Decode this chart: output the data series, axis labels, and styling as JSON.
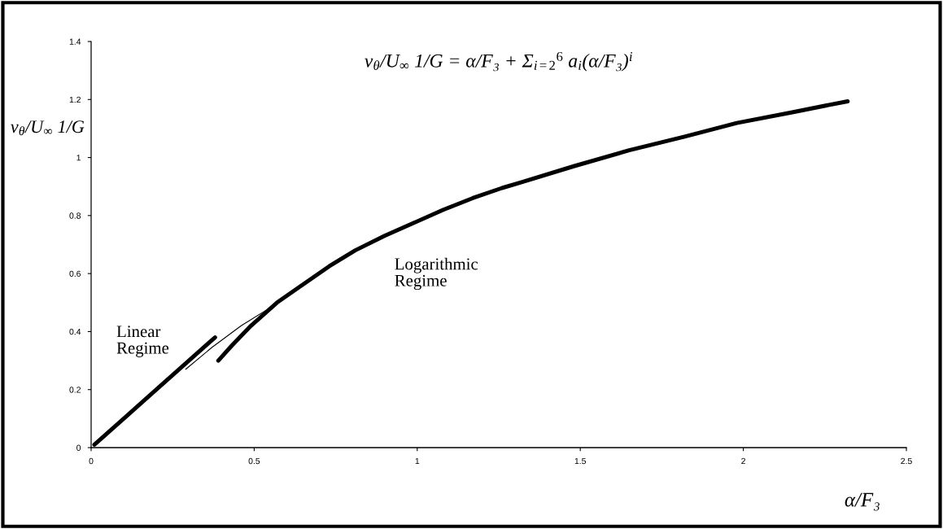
{
  "chart_data": {
    "type": "line",
    "title": "v$_{θ}$/U$_{∞}$ 1/G = α/F₃ + Σ$_{i=2}$$^{6}$ a$_{i}$(α/F₃)$^{i}$",
    "xlabel": "α/F₃",
    "ylabel": "v$_{θ}$/U$_{∞}$ 1/G",
    "xlim": [
      0,
      2.5
    ],
    "xticks": [
      0,
      0.5,
      1,
      1.5,
      2,
      2.5
    ],
    "ylim": [
      0,
      1.4
    ],
    "yticks": [
      0,
      0.2,
      0.4,
      0.6,
      0.8,
      1,
      1.2,
      1.4
    ],
    "series": [
      {
        "color": "#000000",
        "x": [
          0.01,
          0.2,
          0.38
        ],
        "values": [
          0.01,
          0.2,
          0.38
        ]
      },
      {
        "color": "#000000",
        "x": [
          0.39,
          0.43,
          0.49,
          0.57,
          0.64,
          0.73,
          0.81,
          0.9,
          0.99,
          1.08,
          1.17,
          1.26,
          1.32,
          1.48,
          1.65,
          1.82,
          1.98,
          2.15,
          2.32
        ],
        "values": [
          0.3,
          0.35,
          0.42,
          0.5,
          0.555,
          0.625,
          0.68,
          0.73,
          0.775,
          0.82,
          0.86,
          0.895,
          0.915,
          0.97,
          1.025,
          1.072,
          1.119,
          1.156,
          1.194
        ]
      },
      {
        "color": "#000000",
        "x": [
          0.29,
          0.37,
          0.46,
          0.56
        ],
        "values": [
          0.27,
          0.345,
          0.42,
          0.49
        ]
      }
    ],
    "annotations": [
      "Linear\nRegime",
      "Logarithmic\nRegime"
    ]
  }
}
